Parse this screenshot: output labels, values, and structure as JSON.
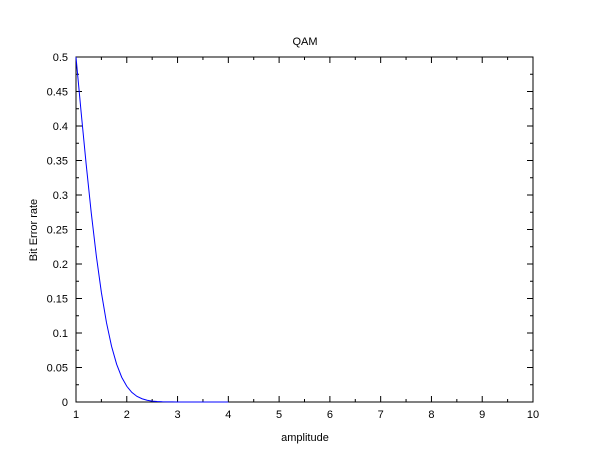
{
  "chart_data": {
    "type": "line",
    "title": "QAM",
    "xlabel": "amplitude",
    "ylabel": "Bit Error rate",
    "xlim": [
      1,
      10
    ],
    "ylim": [
      0,
      0.5
    ],
    "x_ticks": [
      "1",
      "2",
      "3",
      "4",
      "5",
      "6",
      "7",
      "8",
      "9",
      "10"
    ],
    "y_ticks": [
      "0",
      "0.05",
      "0.1",
      "0.15",
      "0.2",
      "0.25",
      "0.3",
      "0.35",
      "0.4",
      "0.45",
      "0.5"
    ],
    "grid": false,
    "series": [
      {
        "color": "#0000ff",
        "x": [
          1.0,
          1.1,
          1.2,
          1.3,
          1.4,
          1.5,
          1.6,
          1.7,
          1.8,
          1.9,
          2.0,
          2.1,
          2.2,
          2.3,
          2.4,
          2.5,
          2.6,
          2.7,
          2.8,
          2.9,
          3.0,
          3.1,
          3.2,
          3.3,
          3.4,
          3.5,
          3.6,
          3.7,
          3.8,
          3.9,
          4.0
        ],
        "y": [
          0.5,
          0.4207,
          0.3446,
          0.2743,
          0.2119,
          0.1587,
          0.1151,
          0.0808,
          0.0548,
          0.0359,
          0.0228,
          0.0139,
          0.0082,
          0.0047,
          0.0026,
          0.0013,
          0.0007,
          0.0003,
          0.0002,
          0.0001,
          0.0,
          0.0,
          0.0,
          0.0,
          0.0,
          0.0,
          0.0,
          0.0,
          0.0,
          0.0,
          0.0
        ]
      }
    ]
  }
}
